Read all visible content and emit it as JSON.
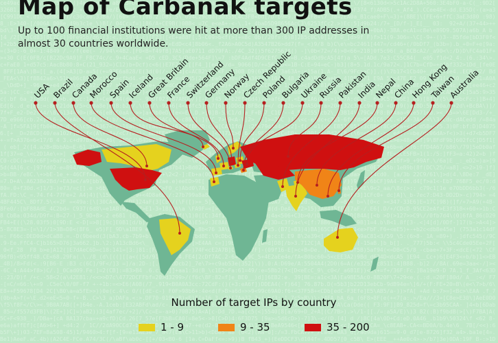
{
  "title": "Map of Carbanak targets",
  "subtitle": "Up to 100 financial institutions were hit at more than 300 IP addresses in almost 30 countries worldwide.",
  "legend": {
    "title": "Number of target IPs by country",
    "items": [
      {
        "label": "1 - 9",
        "color": "#e5d21e"
      },
      {
        "label": "9 - 35",
        "color": "#f08417"
      },
      {
        "label": "35 - 200",
        "color": "#cf1010"
      }
    ]
  },
  "countries": [
    {
      "name": "USA",
      "category": "35 - 200"
    },
    {
      "name": "Brazil",
      "category": "1 - 9"
    },
    {
      "name": "Canada",
      "category": "1 - 9"
    },
    {
      "name": "Morocco",
      "category": "1 - 9"
    },
    {
      "name": "Spain",
      "category": "1 - 9"
    },
    {
      "name": "Iceland",
      "category": "1 - 9"
    },
    {
      "name": "Great Britain",
      "category": "1 - 9"
    },
    {
      "name": "France",
      "category": "1 - 9"
    },
    {
      "name": "Switzerland",
      "category": "1 - 9"
    },
    {
      "name": "Germany",
      "category": "35 - 200"
    },
    {
      "name": "Norway",
      "category": "1 - 9"
    },
    {
      "name": "Czech Republic",
      "category": "1 - 9"
    },
    {
      "name": "Poland",
      "category": "1 - 9"
    },
    {
      "name": "Bulgaria",
      "category": "9 - 35"
    },
    {
      "name": "Ukraine",
      "category": "35 - 200"
    },
    {
      "name": "Russia",
      "category": "35 - 200"
    },
    {
      "name": "Pakistan",
      "category": "1 - 9"
    },
    {
      "name": "India",
      "category": "1 - 9"
    },
    {
      "name": "Nepal",
      "category": "1 - 9"
    },
    {
      "name": "China",
      "category": "9 - 35"
    },
    {
      "name": "Hong Kong",
      "category": "9 - 35"
    },
    {
      "name": "Taiwan",
      "category": "9 - 35"
    },
    {
      "name": "Australia",
      "category": "1 - 9"
    }
  ],
  "colors": {
    "background": "#bfe8c8",
    "land": "#6fb694",
    "leader": "#b51f1f"
  }
}
